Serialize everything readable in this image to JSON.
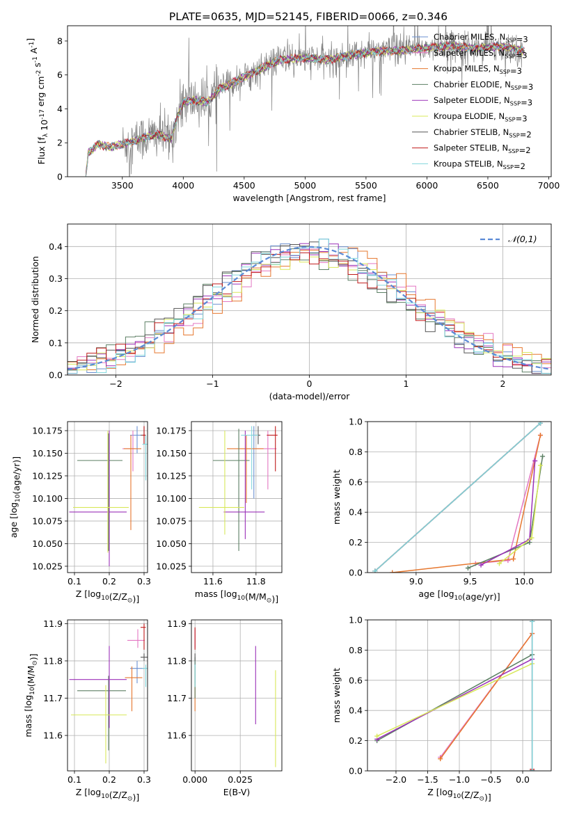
{
  "title": "PLATE=0635, MJD=52145, FIBERID=0066, z=0.346",
  "series_styles": [
    {
      "name": "Chabrier MILES, N_SSP=3",
      "color": "#6a8fd0"
    },
    {
      "name": "Salpeter MILES, N_SSP=3",
      "color": "#e377c2"
    },
    {
      "name": "Kroupa MILES, N_SSP=3",
      "color": "#e6772e"
    },
    {
      "name": "Chabrier ELODIE, N_SSP=3",
      "color": "#5b7f63"
    },
    {
      "name": "Salpeter ELODIE, N_SSP=3",
      "color": "#9b30b8"
    },
    {
      "name": "Kroupa ELODIE, N_SSP=3",
      "color": "#d8e85a"
    },
    {
      "name": "Chabrier STELIB, N_SSP=2",
      "color": "#555555"
    },
    {
      "name": "Salpeter STELIB, N_SSP=2",
      "color": "#c01a1a"
    },
    {
      "name": "Kroupa STELIB, N_SSP=2",
      "color": "#7fd6dc"
    }
  ],
  "chart_data": [
    {
      "id": "spectrum",
      "type": "line",
      "title": "PLATE=0635, MJD=52145, FIBERID=0066, z=0.346",
      "xlabel": "wavelength [Angstrom, rest frame]",
      "ylabel": "Flux [f_λ 10^-17 erg cm^-2 s^-1 A^-1]",
      "xlim": [
        3050,
        7020
      ],
      "ylim": [
        0,
        8.9
      ],
      "xticks": [
        3500,
        4000,
        4500,
        5000,
        5500,
        6000,
        6500,
        7000
      ],
      "yticks": [
        0,
        2,
        4,
        6,
        8
      ],
      "data_color": "#808080",
      "legend": [
        "Chabrier MILES, N_SSP=3",
        "Salpeter MILES, N_SSP=3",
        "Kroupa MILES, N_SSP=3",
        "Chabrier ELODIE, N_SSP=3",
        "Salpeter ELODIE, N_SSP=3",
        "Kroupa ELODIE, N_SSP=3",
        "Chabrier STELIB, N_SSP=2",
        "Salpeter STELIB, N_SSP=2",
        "Kroupa STELIB, N_SSP=2"
      ],
      "legend_position": "top-right",
      "model_continuum": {
        "x": [
          3200,
          3220,
          3300,
          3400,
          3500,
          3600,
          3700,
          3800,
          3900,
          3950,
          4000,
          4100,
          4200,
          4300,
          4400,
          4500,
          4600,
          4700,
          4800,
          5000,
          5200,
          5400,
          5600,
          5800,
          6000,
          6200,
          6400,
          6600,
          6800
        ],
        "y": [
          0,
          1.4,
          1.9,
          1.75,
          1.9,
          2.1,
          2.35,
          2.5,
          2.2,
          3.5,
          4.4,
          4.5,
          4.4,
          5.2,
          5.5,
          5.9,
          6.2,
          6.6,
          6.9,
          7.0,
          6.9,
          7.2,
          7.4,
          7.45,
          7.6,
          7.7,
          7.6,
          7.7,
          7.4
        ]
      },
      "observed_flux": {
        "x_start": 3500,
        "x_end": 6790,
        "noise_scale_blue": 1.6,
        "noise_scale_red": 1.0
      }
    },
    {
      "id": "residuals",
      "type": "step",
      "xlabel": "(data-model)/error",
      "ylabel": "Normed distribution",
      "xlim": [
        -2.5,
        2.5
      ],
      "ylim": [
        0,
        0.47
      ],
      "xticks": [
        -2,
        -1,
        0,
        1,
        2
      ],
      "yticks": [
        0.0,
        0.1,
        0.2,
        0.3,
        0.4
      ],
      "bin_width": 0.1,
      "gaussian": {
        "label": "𝒩(0,1)",
        "mu": 0,
        "sigma": 1,
        "color": "#5b8ad6"
      },
      "legend_position": "top-right"
    },
    {
      "id": "age_vs_Z",
      "type": "errorbar",
      "xlabel": "Z [log10(Z/Z⊙)]",
      "ylabel": "age  [log10(age/yr)]",
      "xlim": [
        0.08,
        0.31
      ],
      "ylim": [
        10.018,
        10.185
      ],
      "xticks": [
        0.1,
        0.2,
        0.3
      ],
      "yticks": [
        10.025,
        10.05,
        10.075,
        10.1,
        10.125,
        10.15,
        10.175
      ],
      "points": [
        {
          "x": 0.28,
          "xerr": [
            0.02,
            0.02
          ],
          "y": 10.17,
          "yerr": [
            0.02,
            0.01
          ],
          "color": "#6a8fd0"
        },
        {
          "x": 0.268,
          "xerr": [
            0.03,
            0.005
          ],
          "y": 10.155,
          "yerr": [
            0.025,
            0.02
          ],
          "color": "#e377c2"
        },
        {
          "x": 0.262,
          "xerr": [
            0.02,
            0.03
          ],
          "y": 10.155,
          "yerr": [
            0.09,
            0.015
          ],
          "color": "#e6772e"
        },
        {
          "x": 0.198,
          "xerr": [
            0.09,
            0.04
          ],
          "y": 10.142,
          "yerr": [
            0.1,
            0.03
          ],
          "color": "#5b7f63"
        },
        {
          "x": 0.2,
          "xerr": [
            0.115,
            0.05
          ],
          "y": 10.085,
          "yerr": [
            0.06,
            0.09
          ],
          "color": "#9b30b8"
        },
        {
          "x": 0.196,
          "xerr": [
            0.1,
            0.06
          ],
          "y": 10.09,
          "yerr": [
            0.05,
            0.085
          ],
          "color": "#d8e85a"
        },
        {
          "x": 0.3,
          "xerr": [
            0.01,
            0.005
          ],
          "y": 10.17,
          "yerr": [
            0.01,
            0.01
          ],
          "color": "#555555"
        },
        {
          "x": 0.3,
          "xerr": [
            0.005,
            0.005
          ],
          "y": 10.17,
          "yerr": [
            0.01,
            0.01
          ],
          "color": "#c01a1a"
        },
        {
          "x": 0.305,
          "xerr": [
            0.01,
            0.005
          ],
          "y": 10.16,
          "yerr": [
            0.04,
            0.01
          ],
          "color": "#7fd6dc"
        }
      ]
    },
    {
      "id": "age_vs_mass",
      "type": "errorbar",
      "xlabel": "mass [log10(M/M⊙)]",
      "ylabel": "",
      "xlim": [
        11.5,
        11.92
      ],
      "ylim": [
        10.018,
        10.185
      ],
      "xticks": [
        11.6,
        11.8
      ],
      "yticks": [
        10.025,
        10.05,
        10.075,
        10.1,
        10.125,
        10.15,
        10.175
      ],
      "points": [
        {
          "x": 11.79,
          "xerr": [
            0.04,
            0.02
          ],
          "y": 10.17,
          "yerr": [
            0.07,
            0.01
          ],
          "color": "#6a8fd0"
        },
        {
          "x": 11.855,
          "xerr": [
            0.06,
            0.04
          ],
          "y": 10.155,
          "yerr": [
            0.045,
            0.02
          ],
          "color": "#e377c2"
        },
        {
          "x": 11.755,
          "xerr": [
            0.09,
            0.08
          ],
          "y": 10.155,
          "yerr": [
            0.06,
            0.015
          ],
          "color": "#e6772e"
        },
        {
          "x": 11.72,
          "xerr": [
            0.12,
            0.05
          ],
          "y": 10.142,
          "yerr": [
            0.1,
            0.035
          ],
          "color": "#5b7f63"
        },
        {
          "x": 11.75,
          "xerr": [
            0.1,
            0.09
          ],
          "y": 10.085,
          "yerr": [
            0.03,
            0.09
          ],
          "color": "#9b30b8"
        },
        {
          "x": 11.655,
          "xerr": [
            0.12,
            0.09
          ],
          "y": 10.09,
          "yerr": [
            0.03,
            0.085
          ],
          "color": "#d8e85a"
        },
        {
          "x": 11.81,
          "xerr": [
            0.03,
            0.01
          ],
          "y": 10.17,
          "yerr": [
            0.01,
            0.01
          ],
          "color": "#555555"
        },
        {
          "x": 11.89,
          "xerr": [
            0.04,
            0.01
          ],
          "y": 10.17,
          "yerr": [
            0.04,
            0.01
          ],
          "color": "#c01a1a"
        },
        {
          "x": 11.78,
          "xerr": [
            0.05,
            0.03
          ],
          "y": 10.17,
          "yerr": [
            0.06,
            0.01
          ],
          "color": "#7fd6dc"
        }
      ]
    },
    {
      "id": "mass_weight_vs_age",
      "type": "line",
      "xlabel": "age  [log10(age/yr)]",
      "ylabel": "mass weight",
      "xlim": [
        8.55,
        10.25
      ],
      "ylim": [
        0,
        1
      ],
      "xticks": [
        9.0,
        9.5,
        10.0
      ],
      "yticks": [
        0.0,
        0.2,
        0.4,
        0.6,
        0.8,
        1.0
      ],
      "series": [
        {
          "color": "#6a8fd0",
          "x": [
            8.62,
            10.15
          ],
          "y": [
            0.01,
            0.99
          ]
        },
        {
          "color": "#e377c2",
          "x": [
            9.55,
            9.85,
            10.15
          ],
          "y": [
            0.06,
            0.08,
            0.91
          ]
        },
        {
          "color": "#e6772e",
          "x": [
            8.78,
            9.9,
            10.15
          ],
          "y": [
            0.0,
            0.09,
            0.91
          ]
        },
        {
          "color": "#5b7f63",
          "x": [
            9.48,
            10.05,
            10.17
          ],
          "y": [
            0.03,
            0.2,
            0.77
          ]
        },
        {
          "color": "#9b30b8",
          "x": [
            9.6,
            10.05,
            10.1
          ],
          "y": [
            0.05,
            0.22,
            0.74
          ]
        },
        {
          "color": "#d8e85a",
          "x": [
            9.77,
            10.07,
            10.15
          ],
          "y": [
            0.06,
            0.23,
            0.71
          ]
        },
        {
          "color": "#555555",
          "x": [
            8.62,
            10.15
          ],
          "y": [
            0.01,
            0.99
          ]
        },
        {
          "color": "#c01a1a",
          "x": [
            8.62,
            10.15
          ],
          "y": [
            0.01,
            0.99
          ]
        },
        {
          "color": "#7fd6dc",
          "x": [
            8.62,
            10.15
          ],
          "y": [
            0.01,
            0.99
          ]
        }
      ]
    },
    {
      "id": "mass_vs_Z",
      "type": "errorbar",
      "xlabel": "Z [log10(Z/Z⊙)]",
      "ylabel": "mass [log10(M/M⊙)]",
      "xlim": [
        0.08,
        0.31
      ],
      "ylim": [
        11.505,
        11.91
      ],
      "xticks": [
        0.1,
        0.2,
        0.3
      ],
      "yticks": [
        11.6,
        11.7,
        11.8,
        11.9
      ],
      "points": [
        {
          "x": 0.28,
          "xerr": [
            0.02,
            0.02
          ],
          "y": 11.78,
          "yerr": [
            0.04,
            0.02
          ],
          "color": "#6a8fd0"
        },
        {
          "x": 0.282,
          "xerr": [
            0.03,
            0.02
          ],
          "y": 11.855,
          "yerr": [
            0.02,
            0.03
          ],
          "color": "#e377c2"
        },
        {
          "x": 0.265,
          "xerr": [
            0.02,
            0.03
          ],
          "y": 11.755,
          "yerr": [
            0.09,
            0.03
          ],
          "color": "#e6772e"
        },
        {
          "x": 0.198,
          "xerr": [
            0.09,
            0.05
          ],
          "y": 11.72,
          "yerr": [
            0.16,
            0.04
          ],
          "color": "#5b7f63"
        },
        {
          "x": 0.2,
          "xerr": [
            0.115,
            0.05
          ],
          "y": 11.75,
          "yerr": [
            0.13,
            0.09
          ],
          "color": "#9b30b8"
        },
        {
          "x": 0.19,
          "xerr": [
            0.1,
            0.06
          ],
          "y": 11.655,
          "yerr": [
            0.13,
            0.08
          ],
          "color": "#d8e85a"
        },
        {
          "x": 0.3,
          "xerr": [
            0.01,
            0.01
          ],
          "y": 11.81,
          "yerr": [
            0.01,
            0.01
          ],
          "color": "#555555"
        },
        {
          "x": 0.3,
          "xerr": [
            0.01,
            0.005
          ],
          "y": 11.89,
          "yerr": [
            0.06,
            0.01
          ],
          "color": "#c01a1a"
        },
        {
          "x": 0.305,
          "xerr": [
            0.01,
            0.005
          ],
          "y": 11.78,
          "yerr": [
            0.05,
            0.01
          ],
          "color": "#7fd6dc"
        }
      ]
    },
    {
      "id": "mass_vs_ebv",
      "type": "errorbar",
      "xlabel": "E(B-V)",
      "ylabel": "",
      "xlim": [
        -0.002,
        0.048
      ],
      "ylim": [
        11.505,
        11.91
      ],
      "xticks": [
        0.0,
        0.025
      ],
      "yticks": [
        11.6,
        11.7,
        11.8,
        11.9
      ],
      "points": [
        {
          "x": 0.0,
          "xerr": [
            0,
            0
          ],
          "y": 11.78,
          "yerr": [
            0.04,
            0.02
          ],
          "color": "#6a8fd0"
        },
        {
          "x": 0.0,
          "xerr": [
            0,
            0
          ],
          "y": 11.855,
          "yerr": [
            0.02,
            0.03
          ],
          "color": "#e377c2"
        },
        {
          "x": 0.0,
          "xerr": [
            0,
            0
          ],
          "y": 11.755,
          "yerr": [
            0.09,
            0.03
          ],
          "color": "#e6772e"
        },
        {
          "x": 0.0,
          "xerr": [
            0,
            0
          ],
          "y": 11.72,
          "yerr": [
            0.02,
            0.09
          ],
          "color": "#5b7f63"
        },
        {
          "x": 0.0335,
          "xerr": [
            0,
            0
          ],
          "y": 11.75,
          "yerr": [
            0.12,
            0.09
          ],
          "color": "#9b30b8"
        },
        {
          "x": 0.0445,
          "xerr": [
            0,
            0
          ],
          "y": 11.655,
          "yerr": [
            0.14,
            0.12
          ],
          "color": "#d8e85a"
        },
        {
          "x": 0.0,
          "xerr": [
            0,
            0
          ],
          "y": 11.81,
          "yerr": [
            0.01,
            0.01
          ],
          "color": "#555555"
        },
        {
          "x": 0.0,
          "xerr": [
            0,
            0
          ],
          "y": 11.86,
          "yerr": [
            0.03,
            0.03
          ],
          "color": "#c01a1a"
        },
        {
          "x": 0.0,
          "xerr": [
            0,
            0
          ],
          "y": 11.78,
          "yerr": [
            0.05,
            0.01
          ],
          "color": "#7fd6dc"
        }
      ]
    },
    {
      "id": "mass_weight_vs_Z",
      "type": "line",
      "xlabel": "Z [log10(Z/Z⊙)]",
      "ylabel": "mass weight",
      "xlim": [
        -2.45,
        0.45
      ],
      "ylim": [
        0,
        1
      ],
      "xticks": [
        -2.0,
        -1.5,
        -1.0,
        -0.5,
        0.0
      ],
      "yticks": [
        0.0,
        0.2,
        0.4,
        0.6,
        0.8,
        1.0
      ],
      "series": [
        {
          "color": "#6a8fd0",
          "x": [
            0.15,
            0.15
          ],
          "y": [
            0.0,
            0.99
          ]
        },
        {
          "color": "#e377c2",
          "x": [
            -1.3,
            0.15
          ],
          "y": [
            0.09,
            0.91
          ]
        },
        {
          "color": "#e6772e",
          "x": [
            -1.3,
            0.15
          ],
          "y": [
            0.08,
            0.91
          ]
        },
        {
          "color": "#5b7f63",
          "x": [
            -2.3,
            0.15
          ],
          "y": [
            0.2,
            0.77
          ]
        },
        {
          "color": "#9b30b8",
          "x": [
            -2.3,
            0.15
          ],
          "y": [
            0.21,
            0.74
          ]
        },
        {
          "color": "#d8e85a",
          "x": [
            -2.3,
            0.15
          ],
          "y": [
            0.23,
            0.71
          ]
        },
        {
          "color": "#555555",
          "x": [
            0.15,
            0.15
          ],
          "y": [
            0.0,
            0.99
          ]
        },
        {
          "color": "#c01a1a",
          "x": [
            0.15,
            0.15
          ],
          "y": [
            0.01,
            0.99
          ]
        },
        {
          "color": "#7fd6dc",
          "x": [
            0.15,
            0.15
          ],
          "y": [
            0.0,
            0.99
          ]
        }
      ]
    }
  ]
}
